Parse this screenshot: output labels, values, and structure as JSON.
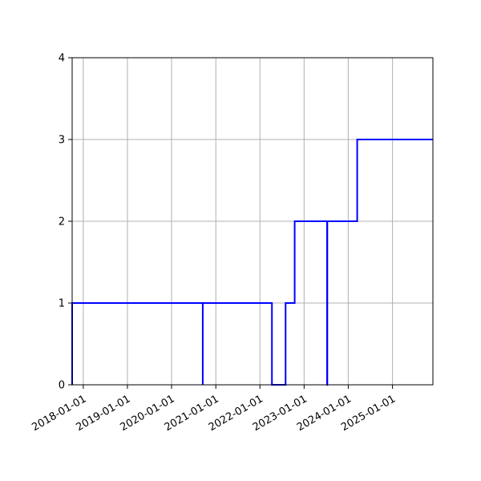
{
  "chart_data": {
    "type": "line",
    "drawstyle": "steps-post",
    "title": "",
    "xlabel": "",
    "ylabel": "",
    "grid": true,
    "xlim": [
      "2017-10-01",
      "2025-12-01"
    ],
    "ylim": [
      0,
      4
    ],
    "x_ticks": [
      "2018-01-01",
      "2019-01-01",
      "2020-01-01",
      "2021-01-01",
      "2022-01-01",
      "2023-01-01",
      "2024-01-01",
      "2025-01-01"
    ],
    "y_ticks": [
      0,
      1,
      2,
      3,
      4
    ],
    "series": [
      {
        "color": "#0000ff",
        "x": [
          "2017-10-01",
          "2017-10-01",
          "2020-09-15",
          "2020-09-15",
          "2020-09-20",
          "2022-04-10",
          "2022-08-01",
          "2022-10-15",
          "2023-07-10",
          "2023-07-12",
          "2024-03-15",
          "2025-12-01"
        ],
        "y": [
          0,
          1,
          0,
          1,
          1,
          0,
          1,
          2,
          0,
          2,
          3,
          3
        ]
      }
    ]
  }
}
